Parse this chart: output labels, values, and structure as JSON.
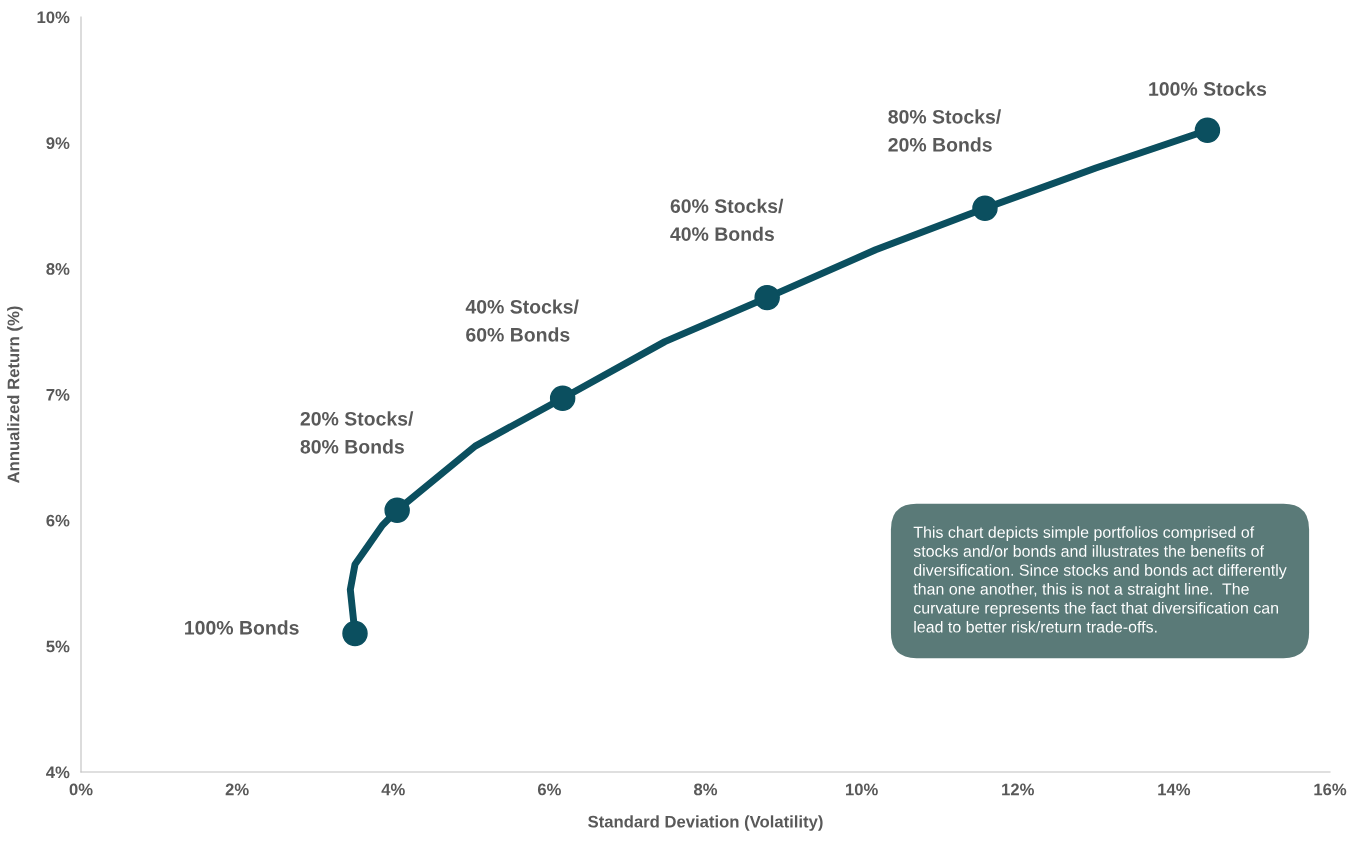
{
  "chart_data": {
    "type": "line",
    "xlabel": "Standard Deviation (Volatility)",
    "ylabel": "Annualized Return (%)",
    "xlim": [
      0,
      16
    ],
    "ylim": [
      4,
      10
    ],
    "xticks": [
      {
        "value": 0,
        "label": "0%"
      },
      {
        "value": 2,
        "label": "2%"
      },
      {
        "value": 4,
        "label": "4%"
      },
      {
        "value": 6,
        "label": "6%"
      },
      {
        "value": 8,
        "label": "8%"
      },
      {
        "value": 10,
        "label": "10%"
      },
      {
        "value": 12,
        "label": "12%"
      },
      {
        "value": 14,
        "label": "14%"
      },
      {
        "value": 16,
        "label": "16%"
      }
    ],
    "yticks": [
      {
        "value": 4,
        "label": "4%"
      },
      {
        "value": 5,
        "label": "5%"
      },
      {
        "value": 6,
        "label": "6%"
      },
      {
        "value": 7,
        "label": "7%"
      },
      {
        "value": 8,
        "label": "8%"
      },
      {
        "value": 9,
        "label": "9%"
      },
      {
        "value": 10,
        "label": "10%"
      }
    ],
    "grid": false,
    "series": [
      {
        "color": "#0b4f5f",
        "marker": "none",
        "line_style": "solid",
        "x": [
          3.51,
          3.45,
          3.51,
          3.68,
          3.86,
          4.05,
          5.05,
          6.17,
          7.48,
          8.79,
          10.18,
          11.58,
          13.0,
          14.43
        ],
        "values": [
          5.1,
          5.45,
          5.65,
          5.8,
          5.96,
          6.08,
          6.59,
          6.97,
          7.42,
          7.77,
          8.15,
          8.48,
          8.8,
          9.1
        ]
      },
      {
        "type": "scatter",
        "color": "#0b4f5f",
        "marker": "circle",
        "x": [
          3.51,
          4.05,
          6.17,
          8.79,
          11.58,
          14.43
        ],
        "values": [
          5.1,
          6.08,
          6.97,
          7.77,
          8.48,
          9.1
        ]
      }
    ],
    "annotations": [
      {
        "text": "100% Bonds",
        "x": 3.51,
        "y": 5.1
      },
      {
        "text": "20% Stocks/\n80% Bonds",
        "x": 4.05,
        "y": 6.08
      },
      {
        "text": "40% Stocks/\n60% Bonds",
        "x": 6.17,
        "y": 6.97
      },
      {
        "text": "60% Stocks/\n40% Bonds",
        "x": 8.79,
        "y": 7.77
      },
      {
        "text": "80% Stocks/\n20% Bonds",
        "x": 11.58,
        "y": 8.48
      },
      {
        "text": "100% Stocks",
        "x": 14.43,
        "y": 9.1
      },
      "This chart depicts simple portfolios comprised of\nstocks and/or bonds and illustrates the benefits of\ndiversification. Since stocks and bonds act differently\nthan one another, this is not a straight line.  The\ncurvature represents the fact that diversification can\nlead to better risk/return trade-offs."
    ]
  }
}
